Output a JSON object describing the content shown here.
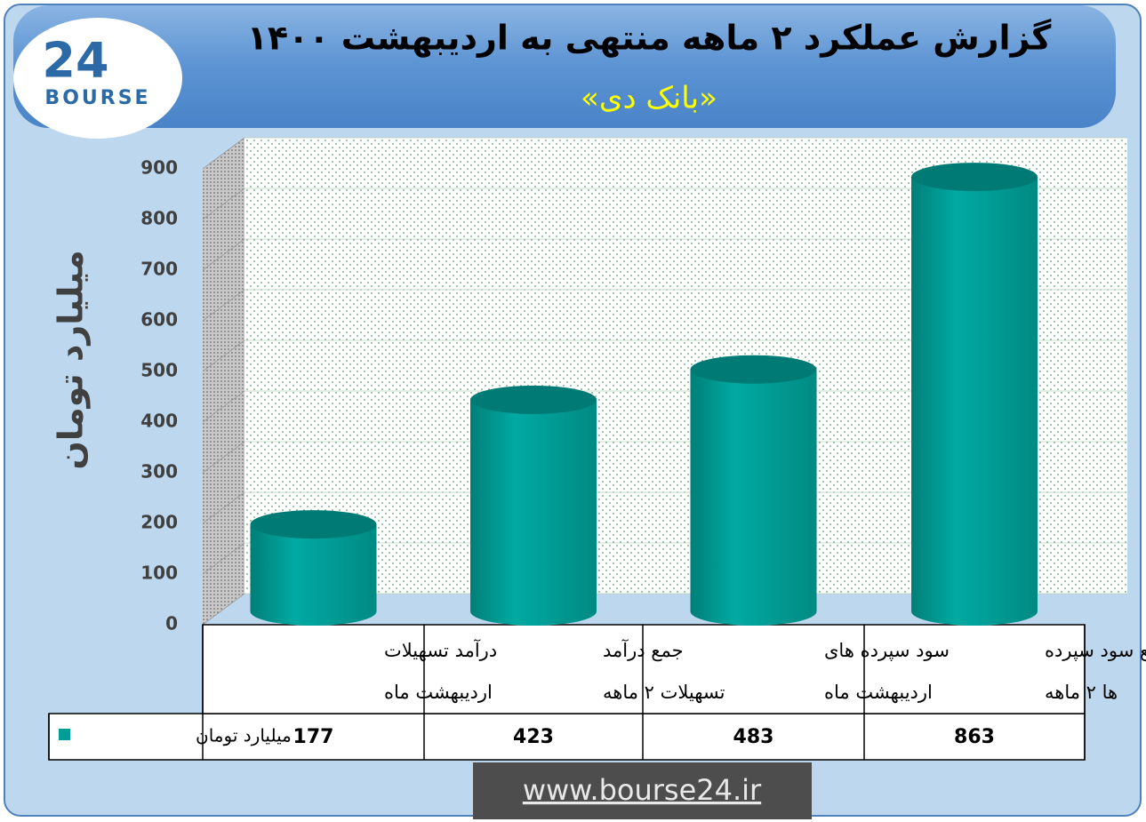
{
  "chart_data": {
    "type": "bar",
    "title": "گزارش عملکرد ۲ ماهه منتهی به اردیبهشت ۱۴۰۰",
    "subtitle": "«بانک دی»",
    "y_label": "میلیارد تومان",
    "categories": [
      [
        "درآمد تسهیلات",
        "اردیبهشت  ماه"
      ],
      [
        "جمع درآمد",
        "تسهیلات ۲ ماهه"
      ],
      [
        "سود سپرده های",
        "اردیبهشت ماه"
      ],
      [
        "جمع سود سپرده",
        "ها ۲ ماهه"
      ]
    ],
    "series": [
      {
        "name": "میلیارد تومان",
        "color": "#009e96",
        "values": [
          177,
          423,
          483,
          863
        ]
      }
    ],
    "ylim": [
      0,
      900
    ],
    "yticks": [
      0,
      100,
      200,
      300,
      400,
      500,
      600,
      700,
      800,
      900
    ],
    "grid": true
  },
  "logo": {
    "number": "24",
    "text": "BOURSE"
  },
  "footer": "www.bourse24.ir"
}
